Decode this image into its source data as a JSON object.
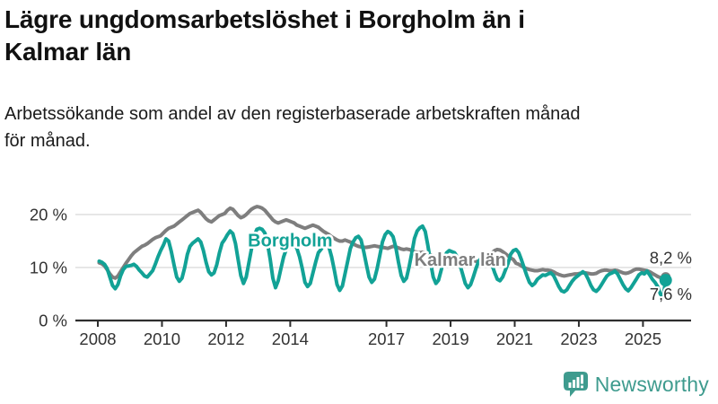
{
  "header": {
    "title": "Lägre ungdomsarbetslöshet i Borgholm än i Kalmar län",
    "title_lines": [
      "Lägre ungdomsarbetslöshet i Borgholm än i",
      "Kalmar län"
    ],
    "subtitle": "Arbetssökande som andel av den registerbaserade arbetskraften månad för månad.",
    "subtitle_lines": [
      "Arbetssökande som andel av den registerbaserade arbetskraften månad",
      "för månad."
    ]
  },
  "footer": {
    "brand": "Newsworthy",
    "brand_color": "#3E9B8E",
    "logo_icon": "bar-chart-speech-bubble-icon"
  },
  "chart_data": {
    "type": "line",
    "title": "Lägre ungdomsarbetslöshet i Borgholm än i Kalmar län",
    "xlabel": "",
    "ylabel": "Arbetssökande som andel av den registerbaserade arbetskraften",
    "x_unit": "year-month",
    "y_unit": "%",
    "xlim": [
      2007.3,
      2026.5
    ],
    "ylim": [
      0,
      26.6
    ],
    "grid": true,
    "x_ticks": [
      2008,
      2010,
      2012,
      2014,
      2017,
      2019,
      2021,
      2023,
      2025
    ],
    "y_ticks": [
      {
        "value": 0,
        "label": "0 %"
      },
      {
        "value": 10,
        "label": "10 %"
      },
      {
        "value": 20,
        "label": "20 %"
      }
    ],
    "x_start": 2008.042,
    "x_step": 0.083333,
    "axis_color": "#2E2E2E",
    "grid_color": "#DCDCDC",
    "tick_label_color": "#333333",
    "series": [
      {
        "name": "Kalmar län",
        "color": "#7E7E7E",
        "line_width": 4,
        "end_dot_radius": 5.5,
        "end_value": 8.2,
        "end_label": "8,2 %",
        "end_label_pos": {
          "x": 2026.4,
          "y": 11.8
        },
        "label_pos": {
          "x": 2019.3,
          "y": 11.5
        },
        "values": [
          10.9,
          10.7,
          10.3,
          9.6,
          8.8,
          8.2,
          8.0,
          8.4,
          9.2,
          10.0,
          10.8,
          11.5,
          12.2,
          12.8,
          13.2,
          13.6,
          14.0,
          14.2,
          14.5,
          14.9,
          15.3,
          15.6,
          15.8,
          16.0,
          16.5,
          17.0,
          17.4,
          17.6,
          17.8,
          18.2,
          18.6,
          19.0,
          19.4,
          19.8,
          20.2,
          20.4,
          20.6,
          20.8,
          20.4,
          19.8,
          19.2,
          18.8,
          18.6,
          19.0,
          19.4,
          19.8,
          20.0,
          20.2,
          20.8,
          21.2,
          21.0,
          20.4,
          19.8,
          19.4,
          19.6,
          20.0,
          20.5,
          21.0,
          21.3,
          21.5,
          21.4,
          21.2,
          20.8,
          20.2,
          19.6,
          19.0,
          18.6,
          18.4,
          18.6,
          18.8,
          19.0,
          18.8,
          18.6,
          18.4,
          18.0,
          17.8,
          17.6,
          17.4,
          17.6,
          17.8,
          18.0,
          17.8,
          17.6,
          17.2,
          16.8,
          16.5,
          16.2,
          15.8,
          15.5,
          15.2,
          15.0,
          15.0,
          15.2,
          15.0,
          14.8,
          14.5,
          14.2,
          14.0,
          13.9,
          13.8,
          13.8,
          13.9,
          14.0,
          14.1,
          14.0,
          13.9,
          13.8,
          13.7,
          13.6,
          13.8,
          14.0,
          13.9,
          13.7,
          13.5,
          13.4,
          13.5,
          13.4,
          13.2,
          13.0,
          12.9,
          12.8,
          12.9,
          12.8,
          12.6,
          12.4,
          12.2,
          12.1,
          12.2,
          12.2,
          12.1,
          12.0,
          11.9,
          11.8,
          11.7,
          11.6,
          11.4,
          11.2,
          11.1,
          11.2,
          11.3,
          11.3,
          11.2,
          11.1,
          11.0,
          11.2,
          11.4,
          12.0,
          12.8,
          13.2,
          13.4,
          13.3,
          13.0,
          12.6,
          12.2,
          11.8,
          11.5,
          10.8,
          10.6,
          10.3,
          10.0,
          9.8,
          9.6,
          9.5,
          9.4,
          9.4,
          9.5,
          9.6,
          9.5,
          9.5,
          9.4,
          9.2,
          8.9,
          8.7,
          8.5,
          8.4,
          8.5,
          8.6,
          8.7,
          8.8,
          8.8,
          8.9,
          9.0,
          9.0,
          8.9,
          8.8,
          8.8,
          8.9,
          9.2,
          9.4,
          9.5,
          9.5,
          9.4,
          9.4,
          9.5,
          9.4,
          9.2,
          9.0,
          8.9,
          9.0,
          9.2,
          9.5,
          9.7,
          9.7,
          9.6,
          9.5,
          9.4,
          9.2,
          8.9,
          8.6,
          8.3,
          8.1,
          8.0,
          8.2
        ]
      },
      {
        "name": "Borgholm",
        "color": "#12A296",
        "line_width": 4,
        "end_dot_radius": 7,
        "end_value": 7.6,
        "end_label": "7,6 %",
        "end_label_pos": {
          "x": 2026.4,
          "y": 4.9
        },
        "label_pos": {
          "x": 2014.0,
          "y": 15.2
        },
        "values": [
          11.2,
          11.0,
          10.6,
          9.8,
          8.2,
          6.6,
          6.0,
          6.8,
          8.4,
          9.6,
          10.2,
          10.3,
          10.4,
          10.6,
          10.2,
          9.5,
          9.0,
          8.4,
          8.2,
          8.8,
          9.4,
          10.6,
          12.0,
          13.2,
          14.2,
          15.4,
          15.0,
          13.0,
          10.5,
          8.2,
          7.4,
          8.0,
          10.0,
          12.5,
          14.0,
          14.6,
          15.0,
          15.4,
          14.8,
          13.2,
          11.0,
          9.2,
          8.6,
          9.0,
          10.5,
          12.8,
          14.6,
          15.3,
          16.2,
          16.9,
          16.4,
          14.5,
          11.5,
          8.5,
          7.0,
          8.2,
          10.8,
          13.5,
          16.0,
          17.2,
          17.4,
          17.2,
          16.5,
          14.5,
          11.5,
          8.0,
          6.2,
          7.5,
          9.8,
          12.0,
          13.4,
          13.8,
          14.0,
          14.2,
          13.6,
          12.0,
          9.8,
          7.2,
          6.4,
          7.0,
          9.0,
          11.0,
          12.8,
          13.4,
          14.2,
          14.4,
          13.8,
          12.0,
          9.5,
          6.8,
          5.7,
          6.5,
          8.8,
          11.2,
          13.6,
          14.8,
          15.6,
          15.9,
          15.2,
          13.0,
          10.5,
          8.2,
          7.2,
          7.8,
          9.8,
          12.2,
          14.8,
          16.2,
          16.8,
          16.5,
          15.8,
          13.8,
          11.0,
          8.5,
          7.4,
          8.0,
          10.2,
          12.8,
          15.5,
          16.9,
          17.5,
          17.8,
          16.8,
          14.2,
          11.0,
          8.2,
          7.0,
          7.6,
          9.5,
          11.5,
          12.8,
          13.2,
          13.0,
          12.8,
          12.0,
          10.5,
          8.8,
          7.0,
          6.2,
          6.8,
          8.2,
          9.8,
          11.2,
          11.8,
          12.5,
          12.2,
          11.5,
          10.5,
          9.0,
          7.8,
          7.5,
          8.2,
          9.5,
          10.8,
          12.5,
          13.2,
          13.4,
          12.8,
          11.5,
          10.0,
          8.5,
          7.2,
          6.6,
          7.0,
          7.8,
          8.2,
          8.6,
          8.5,
          8.8,
          9.0,
          8.5,
          7.5,
          6.4,
          5.6,
          5.4,
          5.8,
          6.6,
          7.4,
          8.0,
          8.4,
          8.8,
          9.2,
          8.8,
          7.8,
          6.6,
          5.8,
          5.5,
          6.0,
          6.8,
          7.6,
          8.4,
          8.8,
          9.0,
          9.3,
          8.8,
          7.8,
          6.8,
          6.0,
          5.6,
          6.2,
          7.0,
          7.8,
          8.6,
          9.0,
          8.8,
          9.3,
          8.6,
          7.8,
          7.2,
          6.4,
          5.0,
          4.3,
          7.6
        ]
      }
    ]
  }
}
